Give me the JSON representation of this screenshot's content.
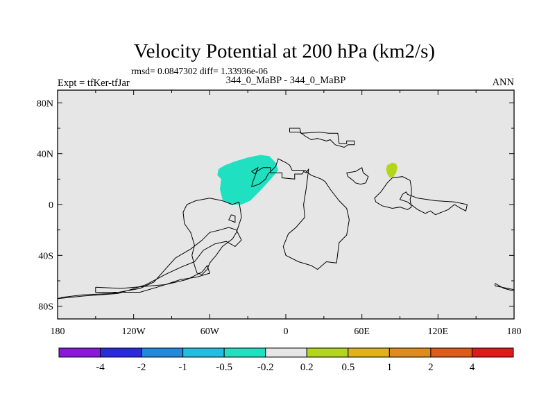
{
  "header": {
    "title": "Velocity Potential at 200 hPa (km2/s)",
    "stats": "rmsd= 0.0847302 diff= 1.33936e-06",
    "case_label": "344_0_MaBP - 344_0_MaBP",
    "expt_label": "Expt = tfKer-tfJar",
    "season": "ANN"
  },
  "chart_data": {
    "type": "heatmap",
    "title": "Velocity Potential at 200 hPa (km2/s)",
    "xlim": [
      -180,
      180
    ],
    "ylim": [
      -90,
      90
    ],
    "x_ticks": [
      {
        "value": -180,
        "label": "180"
      },
      {
        "value": -120,
        "label": "120W"
      },
      {
        "value": -60,
        "label": "60W"
      },
      {
        "value": 0,
        "label": "0"
      },
      {
        "value": 60,
        "label": "60E"
      },
      {
        "value": 120,
        "label": "120E"
      },
      {
        "value": 180,
        "label": "180"
      }
    ],
    "y_ticks": [
      {
        "value": 80,
        "label": "80N"
      },
      {
        "value": 40,
        "label": "40N"
      },
      {
        "value": 0,
        "label": "0"
      },
      {
        "value": -40,
        "label": "40S"
      },
      {
        "value": -80,
        "label": "80S"
      }
    ],
    "background_color": "#e6e6e6",
    "colorbar": {
      "colors": [
        "#8a17e0",
        "#2a2ae0",
        "#1f8be0",
        "#1fbfe0",
        "#1fe0c0",
        "#e6e6e6",
        "#b3d61a",
        "#e0b31a",
        "#e08c1a",
        "#e05a1a",
        "#e01a1a"
      ],
      "labels": [
        "-4",
        "-2",
        "-1",
        "-0.5",
        "-0.2",
        "0.2",
        "0.5",
        "1",
        "2",
        "4"
      ]
    },
    "anomalies": [
      {
        "value": "-0.5 to -0.2",
        "color": "#1fe0c0",
        "polygon": [
          [
            -53,
            28
          ],
          [
            -48,
            31
          ],
          [
            -40,
            34
          ],
          [
            -30,
            37
          ],
          [
            -20,
            39
          ],
          [
            -13,
            38
          ],
          [
            -8,
            33
          ],
          [
            -6,
            27
          ],
          [
            -11,
            21
          ],
          [
            -20,
            11
          ],
          [
            -28,
            3
          ],
          [
            -35,
            0
          ],
          [
            -44,
            0
          ],
          [
            -50,
            4
          ],
          [
            -52,
            12
          ],
          [
            -51,
            20
          ],
          [
            -54,
            23
          ]
        ]
      },
      {
        "value": "0.2 to 0.5",
        "color": "#b3d61a",
        "polygon": [
          [
            79,
            28
          ],
          [
            80,
            31
          ],
          [
            84,
            33
          ],
          [
            87,
            32
          ],
          [
            88,
            29
          ],
          [
            87,
            25
          ],
          [
            85,
            22
          ],
          [
            82,
            21
          ],
          [
            80,
            24
          ]
        ]
      }
    ],
    "coastlines": [
      [
        [
          3,
          57
        ],
        [
          3,
          60
        ],
        [
          11,
          60
        ],
        [
          12,
          56
        ],
        [
          26,
          57
        ],
        [
          34,
          56
        ],
        [
          41,
          56
        ],
        [
          42,
          48
        ],
        [
          46,
          48
        ],
        [
          48,
          48
        ],
        [
          48,
          50
        ],
        [
          54,
          50
        ],
        [
          54,
          47
        ],
        [
          49,
          47
        ],
        [
          46,
          45
        ],
        [
          39,
          47
        ],
        [
          35,
          51
        ],
        [
          32,
          50
        ],
        [
          25,
          52
        ],
        [
          20,
          51
        ],
        [
          15,
          54
        ],
        [
          11,
          57
        ],
        [
          3,
          57
        ]
      ],
      [
        [
          -27,
          14
        ],
        [
          -26,
          18
        ],
        [
          -23,
          26
        ],
        [
          -18,
          29
        ],
        [
          -12,
          29
        ],
        [
          -12,
          25
        ],
        [
          -3,
          25
        ],
        [
          -3,
          21
        ],
        [
          7,
          20
        ],
        [
          7,
          24
        ],
        [
          13,
          24
        ],
        [
          14,
          26
        ],
        [
          16,
          25
        ],
        [
          18,
          28
        ],
        [
          16,
          12
        ],
        [
          14,
          0
        ],
        [
          15,
          -10
        ],
        [
          8,
          -18
        ],
        [
          2,
          -23
        ],
        [
          -2,
          -33
        ],
        [
          0,
          -40
        ],
        [
          10,
          -45
        ],
        [
          20,
          -48
        ],
        [
          25,
          -51
        ],
        [
          32,
          -45
        ],
        [
          40,
          -46
        ],
        [
          42,
          -30
        ],
        [
          48,
          -24
        ],
        [
          50,
          -12
        ],
        [
          48,
          -3
        ],
        [
          42,
          3
        ],
        [
          35,
          12
        ],
        [
          31,
          18
        ],
        [
          28,
          20
        ],
        [
          20,
          23
        ],
        [
          15,
          27
        ],
        [
          5,
          27
        ],
        [
          3,
          31
        ],
        [
          0,
          33
        ],
        [
          -6,
          36
        ],
        [
          -8,
          30
        ],
        [
          -14,
          24
        ],
        [
          -16,
          20
        ],
        [
          -21,
          16
        ],
        [
          -27,
          14
        ]
      ],
      [
        [
          48,
          25
        ],
        [
          49,
          22
        ],
        [
          53,
          19
        ],
        [
          55,
          17
        ],
        [
          59,
          16
        ],
        [
          63,
          17
        ],
        [
          65,
          22
        ],
        [
          61,
          25
        ],
        [
          60,
          29
        ],
        [
          55,
          26
        ],
        [
          48,
          25
        ]
      ],
      [
        [
          -37,
          2
        ],
        [
          -36,
          -3
        ],
        [
          -35,
          -10
        ],
        [
          -37,
          -16
        ],
        [
          -39,
          -22
        ],
        [
          -42,
          -27
        ],
        [
          -50,
          -33
        ],
        [
          -55,
          -40
        ],
        [
          -60,
          -46
        ],
        [
          -62,
          -51
        ],
        [
          -66,
          -55
        ],
        [
          -70,
          -54
        ],
        [
          -72,
          -48
        ],
        [
          -74,
          -40
        ],
        [
          -72,
          -32
        ],
        [
          -75,
          -22
        ],
        [
          -80,
          -15
        ],
        [
          -81,
          -6
        ],
        [
          -78,
          0
        ],
        [
          -71,
          3
        ],
        [
          -60,
          5
        ],
        [
          -50,
          3
        ],
        [
          -42,
          0
        ],
        [
          -37,
          2
        ]
      ],
      [
        [
          -43,
          -8
        ],
        [
          -45,
          -12
        ],
        [
          -40,
          -14
        ],
        [
          -40,
          -9
        ],
        [
          -43,
          -8
        ]
      ],
      [
        [
          -27,
          26
        ],
        [
          -24,
          24
        ],
        [
          -22,
          29
        ],
        [
          -27,
          26
        ]
      ],
      [
        [
          95,
          10
        ],
        [
          92,
          8
        ],
        [
          90,
          4
        ],
        [
          96,
          2
        ],
        [
          104,
          -4
        ],
        [
          110,
          -7
        ],
        [
          114,
          -5
        ],
        [
          118,
          -8
        ],
        [
          128,
          -4
        ],
        [
          133,
          0
        ],
        [
          138,
          -3
        ],
        [
          142,
          -5
        ],
        [
          143,
          0
        ],
        [
          133,
          2
        ],
        [
          118,
          3
        ],
        [
          104,
          5
        ],
        [
          96,
          8
        ],
        [
          95,
          10
        ]
      ],
      [
        [
          165,
          -62
        ],
        [
          165,
          -64
        ],
        [
          180,
          -67
        ],
        [
          180,
          -68
        ],
        [
          172,
          -66
        ],
        [
          165,
          -62
        ]
      ],
      [
        [
          -150,
          -65
        ],
        [
          -150,
          -69
        ],
        [
          -115,
          -69
        ],
        [
          -98,
          -64
        ],
        [
          -83,
          -59
        ],
        [
          -70,
          -57
        ],
        [
          -60,
          -54
        ],
        [
          -62,
          -48
        ],
        [
          -66,
          -53
        ],
        [
          -78,
          -59
        ],
        [
          -95,
          -63
        ],
        [
          -130,
          -66
        ],
        [
          -150,
          -65
        ]
      ],
      [
        [
          -180,
          -74
        ],
        [
          -176,
          -73
        ],
        [
          -160,
          -71
        ],
        [
          -137,
          -70
        ],
        [
          -115,
          -66
        ],
        [
          -104,
          -61
        ],
        [
          -96,
          -52
        ],
        [
          -87,
          -42
        ],
        [
          -75,
          -35
        ],
        [
          -66,
          -28
        ],
        [
          -60,
          -22
        ],
        [
          -52,
          -20
        ],
        [
          -45,
          -18
        ],
        [
          -39,
          -20
        ],
        [
          -35,
          -28
        ],
        [
          -40,
          -33
        ],
        [
          -47,
          -29
        ],
        [
          -56,
          -31
        ],
        [
          -65,
          -36
        ],
        [
          -72,
          -45
        ],
        [
          -82,
          -49
        ],
        [
          -95,
          -55
        ],
        [
          -110,
          -63
        ],
        [
          -132,
          -70
        ],
        [
          -160,
          -72
        ],
        [
          -180,
          -74
        ]
      ],
      [
        [
          99,
          -2
        ],
        [
          96,
          -4
        ],
        [
          90,
          -2
        ],
        [
          84,
          -3
        ],
        [
          76,
          -1
        ],
        [
          71,
          2
        ],
        [
          70,
          5
        ],
        [
          75,
          10
        ],
        [
          80,
          17
        ],
        [
          84,
          21
        ],
        [
          92,
          22
        ],
        [
          98,
          19
        ],
        [
          99,
          13
        ],
        [
          99,
          8
        ],
        [
          98,
          4
        ],
        [
          99,
          -2
        ]
      ]
    ]
  }
}
